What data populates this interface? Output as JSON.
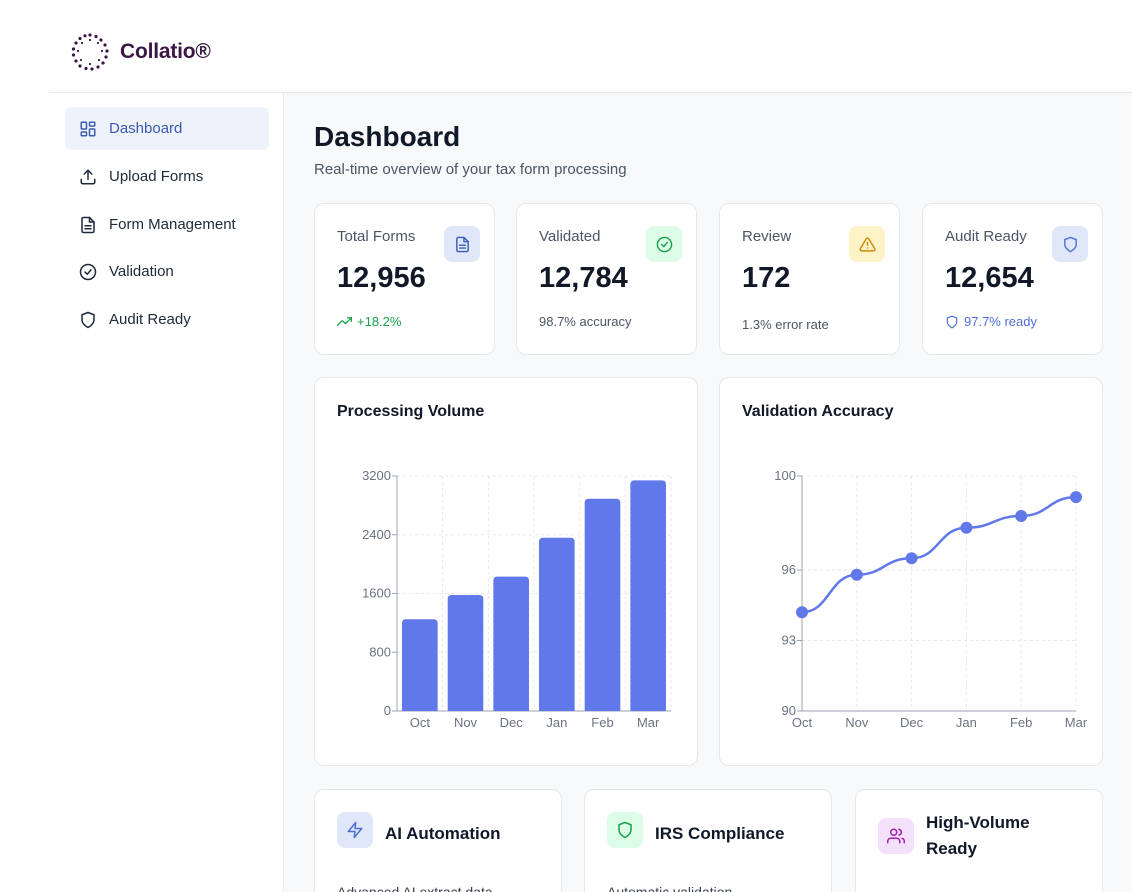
{
  "brand": {
    "name": "Collatio®"
  },
  "sidebar": {
    "items": [
      {
        "label": "Dashboard",
        "icon": "layout-grid-icon",
        "active": true
      },
      {
        "label": "Upload Forms",
        "icon": "upload-icon"
      },
      {
        "label": "Form Management",
        "icon": "file-text-icon"
      },
      {
        "label": "Validation",
        "icon": "check-circle-icon"
      },
      {
        "label": "Audit Ready",
        "icon": "shield-icon"
      }
    ]
  },
  "page": {
    "title": "Dashboard",
    "subtitle": "Real-time overview of your tax form processing"
  },
  "stats": [
    {
      "label": "Total Forms",
      "value": "12,956",
      "sub": "+18.2%",
      "icon": "file-text-icon",
      "accent": "#3b5bb5",
      "icon_bg": "#dfe7f8",
      "sub_color": "#16a34a"
    },
    {
      "label": "Validated",
      "value": "12,784",
      "sub": "98.7% accuracy",
      "icon": "check-circle-icon",
      "accent": "#16a34a",
      "icon_bg": "#dcfce7",
      "sub_color": "#4b5563"
    },
    {
      "label": "Review",
      "value": "172",
      "sub": "1.3% error rate",
      "icon": "alert-triangle-icon",
      "accent": "#ca8a04",
      "icon_bg": "#fef3c7",
      "sub_color": "#4b5563"
    },
    {
      "label": "Audit Ready",
      "value": "12,654",
      "sub": "97.7% ready",
      "icon": "shield-icon",
      "accent": "#4f6fd8",
      "icon_bg": "#dfe7f8",
      "sub_color": "#4f6fd8"
    }
  ],
  "charts": {
    "volume_title": "Processing Volume",
    "accuracy_title": "Validation Accuracy"
  },
  "chart_data": [
    {
      "type": "bar",
      "title": "Processing Volume",
      "categories": [
        "Oct",
        "Nov",
        "Dec",
        "Jan",
        "Feb",
        "Mar"
      ],
      "values": [
        1250,
        1580,
        1830,
        2360,
        2890,
        3140
      ],
      "yticks": [
        0,
        800,
        1600,
        2400,
        3200
      ],
      "ylim": [
        0,
        3200
      ],
      "grid": true,
      "color": "#6078e9"
    },
    {
      "type": "line",
      "title": "Validation Accuracy",
      "categories": [
        "Oct",
        "Nov",
        "Dec",
        "Jan",
        "Feb",
        "Mar"
      ],
      "values": [
        94.2,
        95.8,
        96.5,
        97.8,
        98.3,
        99.1
      ],
      "ytick_labels": [
        "90",
        "93",
        "96",
        "100"
      ],
      "ylim": [
        90,
        100
      ],
      "grid": true,
      "color": "#6078e9"
    }
  ],
  "features": [
    {
      "title": "AI Automation",
      "desc": "Advanced AI extract data",
      "icon": "lightning-icon",
      "accent": "#4f6fd8",
      "icon_bg": "#dfe7f8"
    },
    {
      "title": "IRS Compliance",
      "desc": "Automatic validation",
      "icon": "shield-icon",
      "accent": "#16a34a",
      "icon_bg": "#dcfce7"
    },
    {
      "title": "High-Volume Ready",
      "desc": "",
      "icon": "users-icon",
      "accent": "#a21caf",
      "icon_bg": "#f5e1fb"
    }
  ]
}
